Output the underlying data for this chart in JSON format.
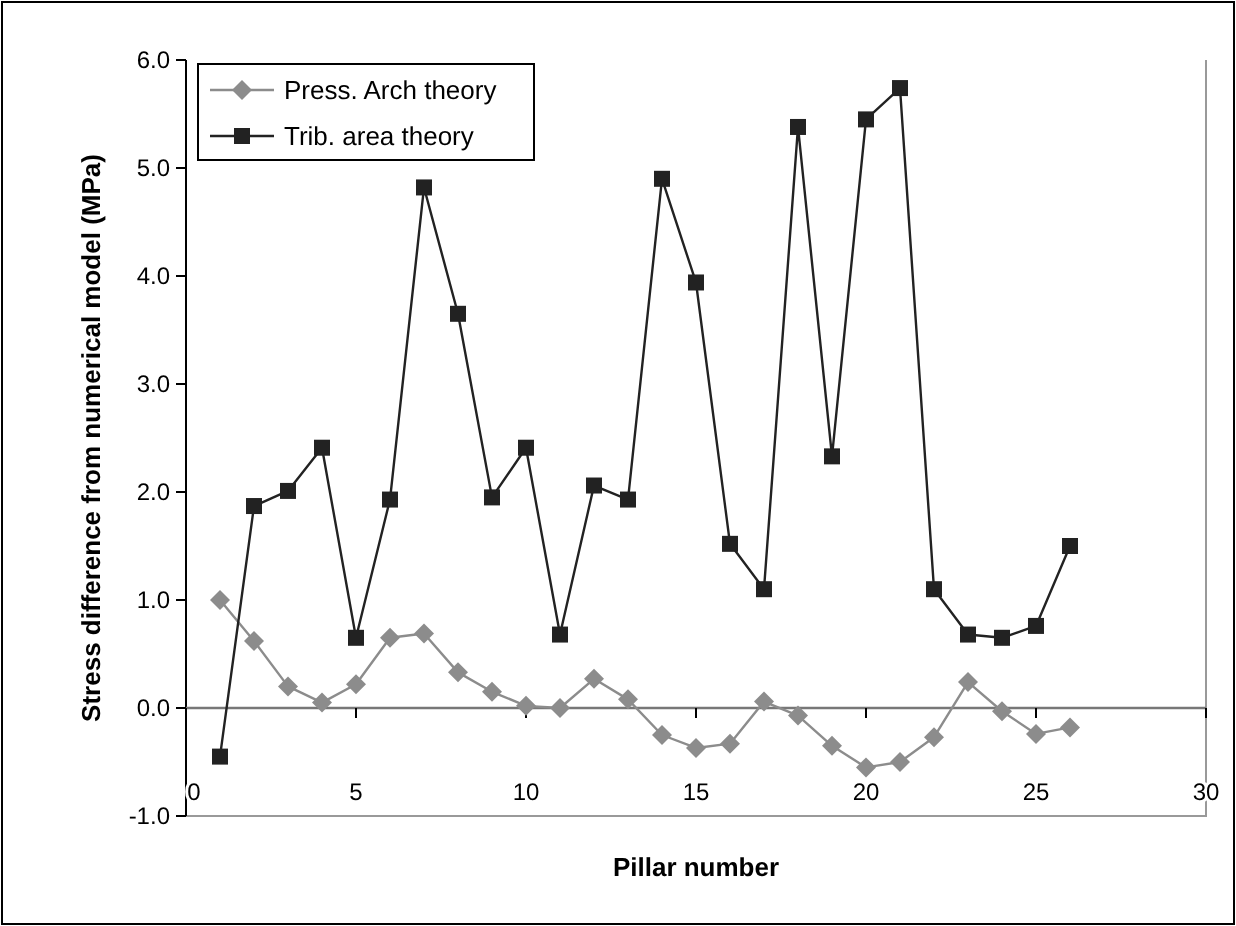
{
  "chart_data": {
    "type": "line",
    "xlabel": "Pillar number",
    "ylabel": "Stress difference from numerical model (MPa)",
    "x": [
      1,
      2,
      3,
      4,
      5,
      6,
      7,
      8,
      9,
      10,
      11,
      12,
      13,
      14,
      15,
      16,
      17,
      18,
      19,
      20,
      21,
      22,
      23,
      24,
      25,
      26
    ],
    "series": [
      {
        "name": "Press. Arch theory",
        "color": "#8c8c8c",
        "marker": "diamond",
        "values": [
          1.0,
          0.62,
          0.2,
          0.05,
          0.22,
          0.65,
          0.69,
          0.33,
          0.15,
          0.02,
          0.0,
          0.27,
          0.08,
          -0.25,
          -0.37,
          -0.33,
          0.06,
          -0.07,
          -0.35,
          -0.55,
          -0.5,
          -0.27,
          0.24,
          -0.03,
          -0.24,
          -0.18
        ]
      },
      {
        "name": "Trib. area theory",
        "color": "#222222",
        "marker": "square",
        "values": [
          -0.45,
          1.87,
          2.01,
          2.41,
          0.65,
          1.93,
          4.82,
          3.65,
          1.95,
          2.41,
          0.68,
          2.06,
          1.93,
          4.9,
          3.94,
          1.52,
          1.1,
          5.38,
          2.33,
          5.45,
          5.74,
          1.1,
          0.68,
          0.65,
          0.76,
          1.5
        ]
      }
    ],
    "xlim": [
      0,
      30
    ],
    "xticks": [
      0,
      5,
      10,
      15,
      20,
      25,
      30
    ],
    "ylim": [
      -1,
      6
    ],
    "yticks": [
      {
        "value": -1,
        "label": "-1.0"
      },
      {
        "value": 0,
        "label": "0.0"
      },
      {
        "value": 1,
        "label": "1.0"
      },
      {
        "value": 2,
        "label": "2.0"
      },
      {
        "value": 3,
        "label": "3.0"
      },
      {
        "value": 4,
        "label": "4.0"
      },
      {
        "value": 5,
        "label": "5.0"
      },
      {
        "value": 6,
        "label": "6.0"
      }
    ],
    "legend": "top left"
  }
}
